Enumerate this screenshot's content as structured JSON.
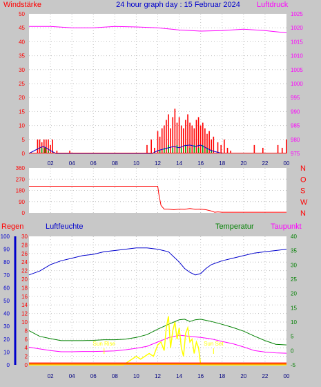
{
  "title": "24 hour graph day : 15 Februar 2024",
  "xticks": [
    "02",
    "04",
    "06",
    "08",
    "10",
    "12",
    "14",
    "16",
    "18",
    "20",
    "22",
    "00"
  ],
  "colors": {
    "wind_axis": "#ff0000",
    "pressure_axis": "#ff00ff",
    "humidity": "#0000cc",
    "temperature": "#008000",
    "dewpoint": "#ff00ff",
    "rain_axis": "#ff0000",
    "solar": "#ffff00",
    "background": "#c8c8c8"
  },
  "chart_data": [
    {
      "type": "bar",
      "panel": "wind",
      "ylabel_left": "Windstärke",
      "ylabel_right": "Luftdruck",
      "ylim_left": [
        0,
        50
      ],
      "yticks_left": [
        "0",
        "5",
        "10",
        "15",
        "20",
        "25",
        "30",
        "35",
        "40",
        "45",
        "50"
      ],
      "ylim_right": [
        975,
        1025
      ],
      "yticks_right": [
        "975",
        "980",
        "985",
        "990",
        "995",
        "1000",
        "1005",
        "1010",
        "1015",
        "1020",
        "1025"
      ],
      "xlim_hours": [
        0,
        24
      ],
      "series": [
        {
          "role": "gust",
          "style": "bars",
          "x": [
            0.8,
            1.0,
            1.2,
            1.4,
            1.6,
            1.8,
            2.0,
            2.2,
            2.6,
            3.8,
            11.0,
            11.4,
            11.7,
            12.0,
            12.2,
            12.4,
            12.6,
            12.8,
            13.0,
            13.2,
            13.4,
            13.6,
            13.8,
            14.0,
            14.2,
            14.4,
            14.6,
            14.8,
            15.0,
            15.2,
            15.4,
            15.6,
            15.8,
            16.0,
            16.2,
            16.4,
            16.6,
            16.8,
            17.0,
            17.2,
            17.6,
            17.9,
            18.2,
            18.5,
            18.8,
            21.0,
            21.8,
            23.2,
            23.6,
            24.0
          ],
          "values": [
            5,
            5,
            4,
            5,
            5,
            5,
            3,
            5,
            1,
            1,
            3,
            5,
            2,
            8,
            6,
            9,
            10,
            12,
            14,
            9,
            13,
            16,
            11,
            13,
            10,
            9,
            12,
            14,
            11,
            10,
            9,
            12,
            13,
            10,
            11,
            9,
            7,
            8,
            5,
            6,
            4,
            3,
            5,
            2,
            1,
            3,
            2,
            3,
            2,
            5
          ]
        },
        {
          "role": "mean_bars",
          "style": "bars",
          "x": [
            1.2,
            1.5,
            1.8,
            12.2,
            12.6,
            13.0,
            13.4,
            13.8,
            14.2,
            14.6,
            15.0,
            15.4,
            15.8,
            16.2,
            16.6,
            17.0
          ],
          "values": [
            2,
            2,
            1,
            1,
            2,
            3,
            2,
            3,
            2,
            3,
            2,
            3,
            2,
            3,
            2,
            1
          ]
        },
        {
          "role": "mean_line",
          "style": "line",
          "x": [
            0,
            0.5,
            1.0,
            1.3,
            1.6,
            2.0,
            2.5,
            11.5,
            12.0,
            12.5,
            13.0,
            13.5,
            14.0,
            14.5,
            15.0,
            15.5,
            16.0,
            16.5,
            17.0,
            17.5,
            18.0
          ],
          "values": [
            0,
            1,
            2,
            2.5,
            2,
            1,
            0,
            0,
            1,
            1.5,
            2,
            2.5,
            2,
            2.8,
            3,
            2.5,
            3,
            2,
            1,
            0.5,
            0
          ]
        },
        {
          "role": "pressure",
          "style": "line",
          "axis": "right",
          "x": [
            0,
            2,
            4,
            6,
            8,
            10,
            12,
            14,
            16,
            18,
            20,
            22,
            24
          ],
          "values": [
            1020.5,
            1020.5,
            1020,
            1020,
            1020.5,
            1020.3,
            1020,
            1019.2,
            1018.8,
            1019,
            1019.5,
            1019,
            1018.2
          ]
        }
      ]
    },
    {
      "type": "line",
      "panel": "wind_direction",
      "ylim": [
        0,
        360
      ],
      "yticks": [
        "0",
        "90",
        "180",
        "270",
        "360"
      ],
      "right_labels": [
        "N",
        "W",
        "S",
        "O",
        "N"
      ],
      "xlim_hours": [
        0,
        24
      ],
      "series": [
        {
          "role": "direction",
          "x": [
            0,
            6,
            12,
            12.1,
            12.3,
            12.6,
            13.0,
            13.5,
            14.0,
            14.5,
            15.0,
            15.5,
            16.0,
            16.5,
            17.0,
            17.3,
            17.6,
            18,
            20,
            22,
            24
          ],
          "values": [
            213,
            213,
            213,
            150,
            60,
            30,
            30,
            25,
            30,
            28,
            35,
            28,
            30,
            25,
            15,
            5,
            8,
            5,
            5,
            5,
            5
          ]
        }
      ]
    },
    {
      "type": "line",
      "panel": "climate",
      "axis_labels": [
        "Regen",
        "Luftfeuchte",
        "Temperatur",
        "Taupunkt"
      ],
      "rain_ticks": [
        "0",
        "2",
        "4",
        "6",
        "8",
        "10",
        "12",
        "14",
        "16",
        "18",
        "20",
        "22",
        "24",
        "26",
        "28",
        "30"
      ],
      "humidity_ticks": [
        "0",
        "10",
        "20",
        "30",
        "40",
        "50",
        "60",
        "70",
        "80",
        "90",
        "100"
      ],
      "temp_ticks": [
        "-5",
        "0",
        "5",
        "10",
        "15",
        "20",
        "25",
        "30",
        "35",
        "40"
      ],
      "rain_ylim": [
        0,
        30
      ],
      "humidity_ylim": [
        0,
        100
      ],
      "temp_ylim": [
        -5,
        40
      ],
      "xlim_hours": [
        0,
        24
      ],
      "annotations": [
        "Sun Rise",
        "Sun Set"
      ],
      "sunrise_hour": 7.0,
      "sunset_hour": 17.2,
      "series": [
        {
          "role": "humidity",
          "axis": "humidity",
          "x": [
            0,
            1,
            2,
            3,
            4,
            5,
            6,
            7,
            8,
            9,
            10,
            11,
            12,
            13,
            14,
            14.5,
            15,
            15.5,
            16,
            16.5,
            17,
            18,
            19,
            20,
            21,
            22,
            23,
            24
          ],
          "values": [
            70,
            73,
            78,
            81,
            83,
            85,
            86,
            88,
            89,
            90,
            91,
            91,
            90,
            88,
            80,
            75,
            72,
            70,
            71,
            75,
            78,
            81,
            83,
            85,
            87,
            88,
            89,
            90
          ]
        },
        {
          "role": "temperature",
          "axis": "temp",
          "x": [
            0,
            1,
            2,
            3,
            4,
            5,
            6,
            7,
            8,
            9,
            10,
            11,
            12,
            13,
            14,
            14.5,
            15,
            15.5,
            16,
            17,
            18,
            19,
            20,
            21,
            22,
            23,
            24
          ],
          "values": [
            7,
            5,
            4.2,
            3.5,
            3.5,
            3.5,
            3.6,
            3.8,
            3.8,
            4.0,
            4.6,
            5.6,
            7.5,
            9.2,
            10.8,
            11.0,
            10.2,
            10.8,
            11.0,
            10.2,
            9.2,
            8.1,
            6.8,
            5.1,
            3.5,
            2.2,
            2.0
          ]
        },
        {
          "role": "dewpoint",
          "axis": "temp",
          "x": [
            0,
            1,
            2,
            3,
            4,
            5,
            6,
            7,
            8,
            9,
            10,
            11,
            12,
            13,
            14,
            15,
            16,
            17,
            18,
            19,
            20,
            21,
            22,
            23,
            24
          ],
          "values": [
            1.2,
            0.6,
            0.0,
            -0.4,
            -0.4,
            -0.3,
            -0.3,
            -0.2,
            -0.1,
            0.3,
            0.8,
            1.5,
            3.0,
            4.5,
            5.4,
            5.0,
            4.6,
            4.1,
            3.2,
            2.4,
            1.3,
            0.0,
            -0.5,
            -0.8,
            -0.9
          ]
        },
        {
          "role": "solar",
          "axis": "temp",
          "x": [
            0,
            8.8,
            9.2,
            9.6,
            10.0,
            10.4,
            10.8,
            11.2,
            11.6,
            12.0,
            12.3,
            12.6,
            12.8,
            13.0,
            13.2,
            13.4,
            13.6,
            13.8,
            14.0,
            14.2,
            14.4,
            14.6,
            14.8,
            15.0,
            15.2,
            15.4,
            15.6,
            15.8,
            16.0,
            24
          ],
          "values": [
            -5,
            -5,
            -4,
            -3,
            -2,
            -3,
            -2,
            -1,
            -2,
            2,
            3,
            0,
            8,
            12,
            1,
            7,
            10,
            4,
            8,
            1,
            -2,
            6,
            8,
            3,
            4,
            -1,
            3,
            1,
            -5,
            -5
          ]
        },
        {
          "role": "rain",
          "axis": "rain",
          "x": [
            0,
            24
          ],
          "values": [
            0.3,
            0.3
          ]
        }
      ]
    }
  ]
}
